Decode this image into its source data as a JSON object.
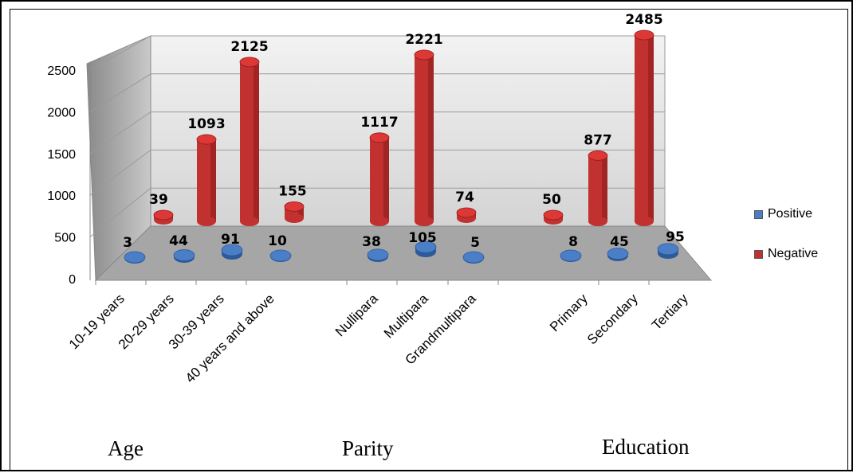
{
  "colors": {
    "positive": "#4a7fc8",
    "positive_dark": "#2d5a99",
    "negative": "#c0312f",
    "negative_dark": "#8e1e1c",
    "wall": "#d4d4d4",
    "floor": "#a6a6a6"
  },
  "group_labels": {
    "age": "Age",
    "parity": "Parity",
    "education": "Education"
  },
  "chart_data": {
    "type": "bar",
    "categories": [
      "10-19 years",
      "20-29 years",
      "30-39 years",
      "40 years and above",
      "Nullipara",
      "Multipara",
      "Grandmultipara",
      "Primary",
      "Secondary",
      "Tertiary"
    ],
    "series": [
      {
        "name": "Positive",
        "values": [
          3,
          44,
          91,
          10,
          38,
          105,
          5,
          8,
          45,
          95
        ]
      },
      {
        "name": "Negative",
        "values": [
          39,
          1093,
          2125,
          155,
          1117,
          2221,
          74,
          50,
          877,
          2485
        ]
      }
    ],
    "y_ticks": [
      "0",
      "500",
      "1000",
      "1500",
      "2000",
      "2500"
    ],
    "ylim": [
      0,
      2500
    ],
    "grid": true,
    "legend_position": "right"
  }
}
